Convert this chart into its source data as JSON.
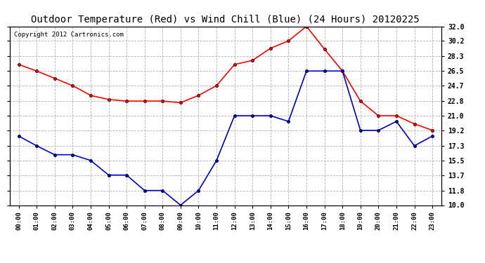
{
  "title": "Outdoor Temperature (Red) vs Wind Chill (Blue) (24 Hours) 20120225",
  "copyright": "Copyright 2012 Cartronics.com",
  "x_labels": [
    "00:00",
    "01:00",
    "02:00",
    "03:00",
    "04:00",
    "05:00",
    "06:00",
    "07:00",
    "08:00",
    "09:00",
    "10:00",
    "11:00",
    "12:00",
    "13:00",
    "14:00",
    "15:00",
    "16:00",
    "17:00",
    "18:00",
    "19:00",
    "20:00",
    "21:00",
    "22:00",
    "23:00"
  ],
  "red_data": [
    27.3,
    26.5,
    25.6,
    24.7,
    23.5,
    23.0,
    22.8,
    22.8,
    22.8,
    22.6,
    23.5,
    24.7,
    27.3,
    27.8,
    29.3,
    30.2,
    32.0,
    29.2,
    26.5,
    22.8,
    21.0,
    21.0,
    20.0,
    19.2
  ],
  "blue_data": [
    18.5,
    17.3,
    16.2,
    16.2,
    15.5,
    13.7,
    13.7,
    11.8,
    11.8,
    10.0,
    11.8,
    15.5,
    21.0,
    21.0,
    21.0,
    20.3,
    26.5,
    26.5,
    26.5,
    19.2,
    19.2,
    20.3,
    17.3,
    18.5
  ],
  "y_ticks": [
    10.0,
    11.8,
    13.7,
    15.5,
    17.3,
    19.2,
    21.0,
    22.8,
    24.7,
    26.5,
    28.3,
    30.2,
    32.0
  ],
  "y_min": 10.0,
  "y_max": 32.0,
  "red_color": "#ff0000",
  "blue_color": "#0000cc",
  "bg_color": "#ffffff",
  "grid_color": "#b0b0b0",
  "title_fontsize": 10,
  "copyright_fontsize": 6.5
}
